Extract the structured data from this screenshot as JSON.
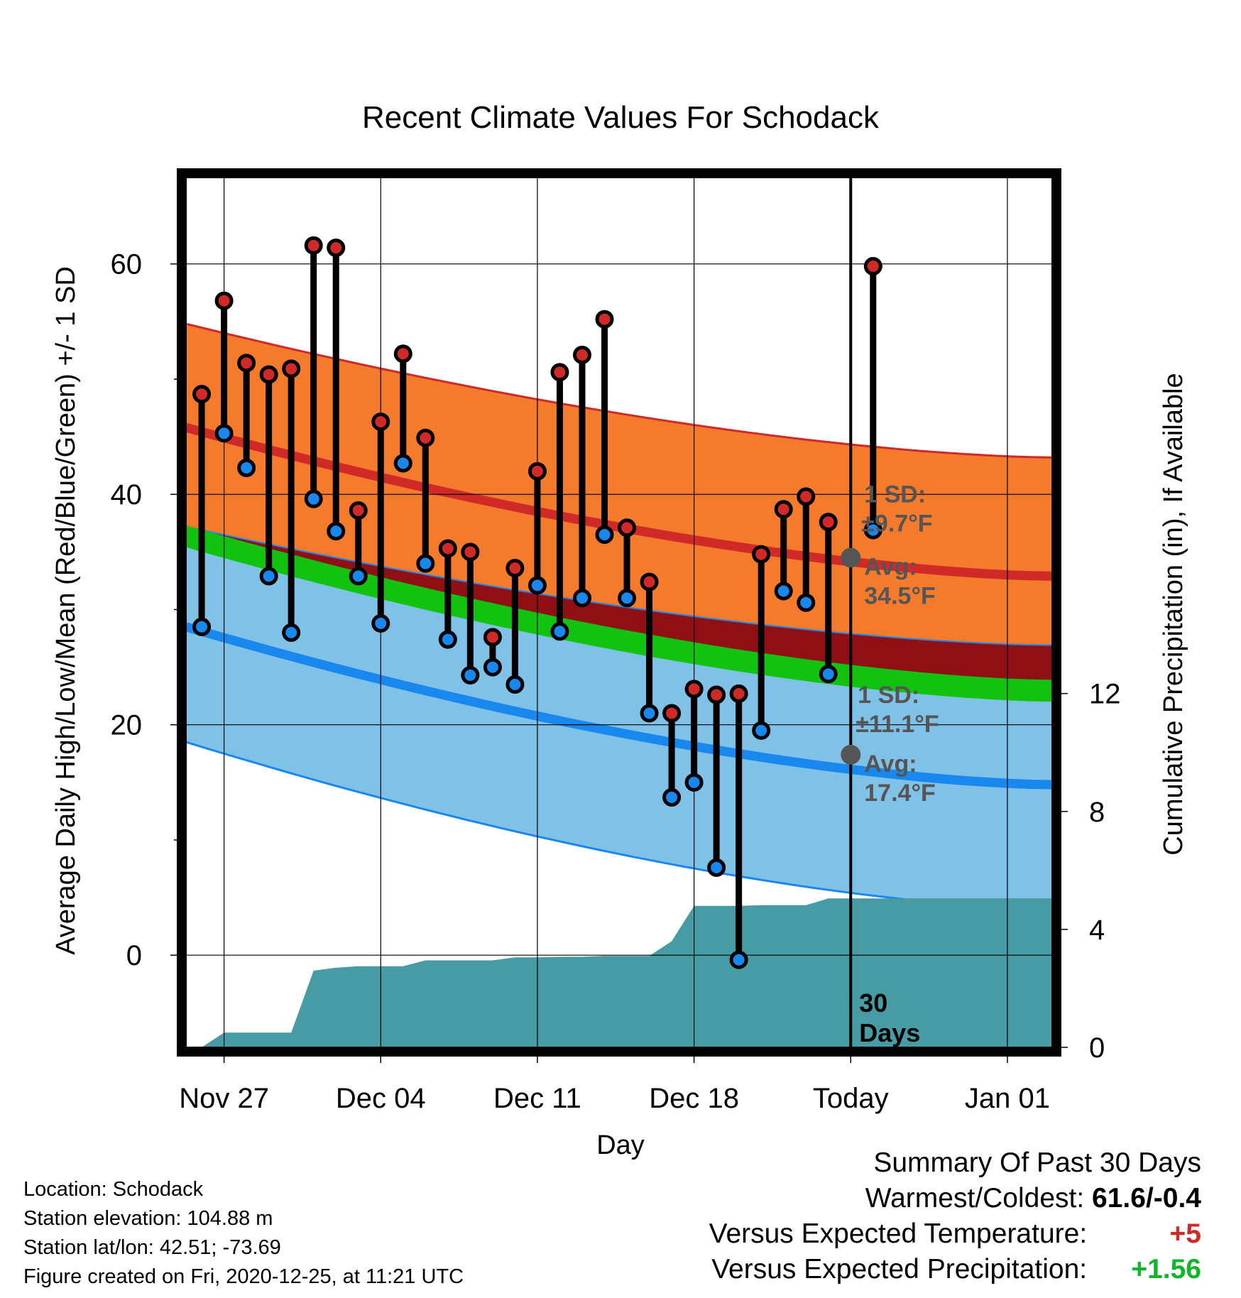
{
  "chart_data": {
    "type": "line",
    "title": "Recent Climate Values For Schodack",
    "xlabel": "Day",
    "ylabel": "Average Daily High/Low/Mean (Red/Blue/Green) +/- 1 SD",
    "y2label": "Cumulative Precipitation (in), If Available",
    "ylim": [
      -8,
      67.5
    ],
    "y2lim": [
      0,
      29.5
    ],
    "xlim_days": [
      -29.7,
      9
    ],
    "grid": true,
    "x_tick_labels": [
      "Nov 27",
      "Dec 04",
      "Dec 11",
      "Dec 18",
      "Today",
      "Jan 01"
    ],
    "x_tick_days": [
      -28,
      -21,
      -14,
      -7,
      0,
      7
    ],
    "y_ticks": [
      0,
      20,
      40,
      60
    ],
    "y2_ticks": [
      0,
      4,
      8,
      12
    ],
    "today_line_label": [
      "30",
      "Days"
    ],
    "normal_high": {
      "day": [
        -29.7,
        9
      ],
      "avg": [
        45.8,
        32.9
      ],
      "sd_upper": [
        54.8,
        43.2
      ],
      "sd_lower": [
        37.2,
        26.9
      ]
    },
    "normal_low": {
      "day": [
        -29.7,
        9
      ],
      "avg": [
        28.5,
        14.8
      ],
      "sd_upper": [
        35.5,
        22.0
      ],
      "sd_lower": [
        18.5,
        4.0
      ]
    },
    "normal_mean": {
      "day": [
        -29.7,
        9
      ],
      "avg": [
        36.6,
        23.2
      ]
    },
    "daily_observations": {
      "day": [
        -29,
        -28,
        -27,
        -26,
        -25,
        -24,
        -23,
        -22,
        -21,
        -20,
        -19,
        -18,
        -17,
        -16,
        -15,
        -14,
        -13,
        -12,
        -11,
        -10,
        -9,
        -8,
        -7,
        -6,
        -5,
        -4,
        -3,
        -2,
        -1
      ],
      "high": [
        48.7,
        56.8,
        51.4,
        50.4,
        50.9,
        61.6,
        61.4,
        38.6,
        46.3,
        52.2,
        44.9,
        35.3,
        35.0,
        27.6,
        33.6,
        42.0,
        50.6,
        52.1,
        55.2,
        37.1,
        32.4,
        21.0,
        23.1,
        22.6,
        22.7,
        34.8,
        38.7,
        39.8,
        37.6
      ],
      "low": [
        28.5,
        45.3,
        42.3,
        32.9,
        28.0,
        39.6,
        36.8,
        32.9,
        28.8,
        42.7,
        34.0,
        27.4,
        24.3,
        25.0,
        23.5,
        32.1,
        28.1,
        31.0,
        36.5,
        31.0,
        21.0,
        13.7,
        15.0,
        7.6,
        -0.4,
        19.5,
        31.6,
        30.6,
        24.4
      ]
    },
    "last_day": {
      "day": 1,
      "high": 59.8,
      "low": 36.9
    },
    "cumulative_precipitation": {
      "day": [
        -29.7,
        -29,
        -28,
        -27,
        -26,
        -25,
        -24,
        -23,
        -22,
        -21,
        -20,
        -19,
        -18,
        -17,
        -16,
        -15,
        -14,
        -13,
        -12,
        -11,
        -10,
        -9,
        -8,
        -7,
        -6,
        -5,
        -4,
        -3,
        -2,
        -1,
        0,
        9
      ],
      "value": [
        0,
        0,
        0.5,
        0.5,
        0.5,
        0.5,
        2.6,
        2.7,
        2.75,
        2.75,
        2.75,
        2.95,
        2.95,
        2.95,
        2.95,
        3.05,
        3.05,
        3.07,
        3.07,
        3.1,
        3.1,
        3.1,
        3.6,
        4.8,
        4.8,
        4.8,
        4.82,
        4.82,
        4.82,
        5.05,
        5.05,
        5.05
      ]
    },
    "annotations": {
      "high": {
        "sd_label": "1 SD:",
        "sd_value": "±9.7°F",
        "avg_label": "Avg:",
        "avg_value": "34.5°F",
        "avg": 34.5
      },
      "low": {
        "sd_label": "1 SD:",
        "sd_value": "±11.1°F",
        "avg_label": "Avg:",
        "avg_value": "17.4°F",
        "avg": 17.4
      }
    },
    "colors": {
      "high_band": "#f47a2c",
      "high_line": "#cf2a27",
      "high_dark": "#900f14",
      "mean_band": "#11c20f",
      "low_band": "#80c1e8",
      "low_line": "#1888ee",
      "precip": "#479ba4",
      "marker_high": "#cf2a27",
      "marker_low": "#1888ee",
      "annotation": "#555555"
    }
  },
  "footer": {
    "location": "Location: Schodack",
    "elevation": "Station elevation: 104.88 m",
    "latlon": "Station lat/lon: 42.51; -73.69",
    "created": "Figure created on Fri, 2020-12-25, at 11:21 UTC"
  },
  "summary": {
    "heading": "Summary Of Past 30 Days",
    "warmest_coldest_label": "Warmest/Coldest:",
    "warmest_coldest_value": "61.6/-0.4",
    "temp_label": "Versus Expected Temperature:",
    "temp_value": "+5",
    "temp_color": "#cf2a27",
    "precip_label": "Versus Expected Precipitation:",
    "precip_value": "+1.56",
    "precip_color": "#11b52a"
  }
}
